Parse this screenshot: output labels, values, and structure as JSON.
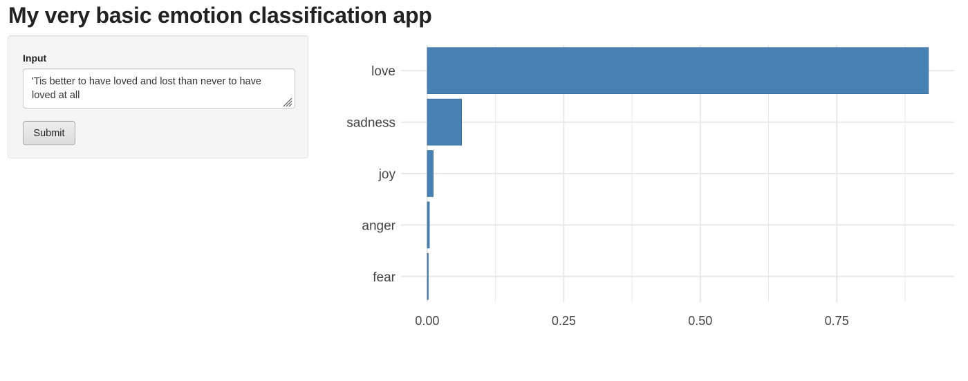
{
  "app": {
    "title": "My very basic emotion classification app"
  },
  "sidebar": {
    "input_label": "Input",
    "input_value": "'Tis better to have loved and lost than never to have loved at all",
    "submit_label": "Submit"
  },
  "colors": {
    "bar_fill": "#4682b4",
    "bar_stroke": "#2f5f8a",
    "grid": "#e8e8e8",
    "panel_bg": "#f5f5f5"
  },
  "chart_data": {
    "type": "bar",
    "orientation": "horizontal",
    "categories": [
      "love",
      "sadness",
      "joy",
      "anger",
      "fear"
    ],
    "values": [
      0.918,
      0.063,
      0.011,
      0.004,
      0.002
    ],
    "x_ticks": [
      0.0,
      0.25,
      0.5,
      0.75
    ],
    "x_tick_labels": [
      "0.00",
      "0.25",
      "0.50",
      "0.75"
    ],
    "xlim": [
      -0.048,
      0.965
    ],
    "title": "",
    "xlabel": "",
    "ylabel": "",
    "grid": true,
    "legend": "none"
  }
}
